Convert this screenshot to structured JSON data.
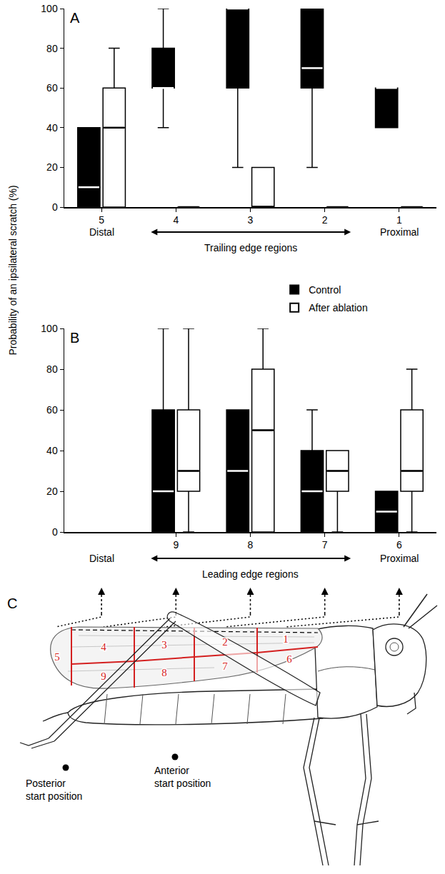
{
  "y_label": "Probability of an ipsilateral scratch (%)",
  "chart_data": [
    {
      "panel": "A",
      "type": "box",
      "categories": [
        "5",
        "4",
        "3",
        "2",
        "1"
      ],
      "series": [
        {
          "name": "Control",
          "color": "#000000",
          "min": [
            0,
            40,
            20,
            20,
            40
          ],
          "q1": [
            0,
            60,
            60,
            60,
            40
          ],
          "median": [
            10,
            60,
            100,
            70,
            60
          ],
          "q3": [
            40,
            80,
            100,
            100,
            60
          ],
          "max": [
            40,
            100,
            100,
            100,
            60
          ]
        },
        {
          "name": "After ablation",
          "color": "#ffffff",
          "min": [
            0,
            0,
            0,
            0,
            0
          ],
          "q1": [
            0,
            0,
            0,
            0,
            0
          ],
          "median": [
            40,
            0,
            0,
            0,
            0
          ],
          "q3": [
            60,
            0,
            20,
            0,
            0
          ],
          "max": [
            80,
            0,
            20,
            0,
            0
          ]
        }
      ],
      "ylim": [
        0,
        100
      ],
      "yticks": [
        0,
        20,
        40,
        60,
        80,
        100
      ],
      "x_label": "Trailing edge regions",
      "end_labels": [
        "Distal",
        "Proximal"
      ]
    },
    {
      "panel": "B",
      "type": "box",
      "categories": [
        null,
        "9",
        "8",
        "7",
        "6"
      ],
      "series": [
        {
          "name": "Control",
          "color": "#000000",
          "min": [
            null,
            0,
            0,
            0,
            0
          ],
          "q1": [
            null,
            0,
            0,
            0,
            0
          ],
          "median": [
            null,
            20,
            30,
            20,
            10
          ],
          "q3": [
            null,
            60,
            60,
            40,
            20
          ],
          "max": [
            null,
            100,
            60,
            60,
            20
          ]
        },
        {
          "name": "After ablation",
          "color": "#ffffff",
          "min": [
            null,
            0,
            0,
            0,
            0
          ],
          "q1": [
            null,
            20,
            0,
            20,
            20
          ],
          "median": [
            null,
            30,
            50,
            30,
            30
          ],
          "q3": [
            null,
            60,
            80,
            40,
            60
          ],
          "max": [
            null,
            100,
            100,
            40,
            80
          ]
        }
      ],
      "ylim": [
        0,
        100
      ],
      "yticks": [
        0,
        20,
        40,
        60,
        80,
        100
      ],
      "x_label": "Leading edge regions",
      "end_labels": [
        "Distal",
        "Proximal"
      ],
      "legend": "right"
    }
  ],
  "diagram": {
    "label": "C",
    "regions": [
      "1",
      "2",
      "3",
      "4",
      "5",
      "6",
      "7",
      "8",
      "9"
    ],
    "start_positions": [
      "Posterior start position",
      "Anterior start position"
    ]
  }
}
